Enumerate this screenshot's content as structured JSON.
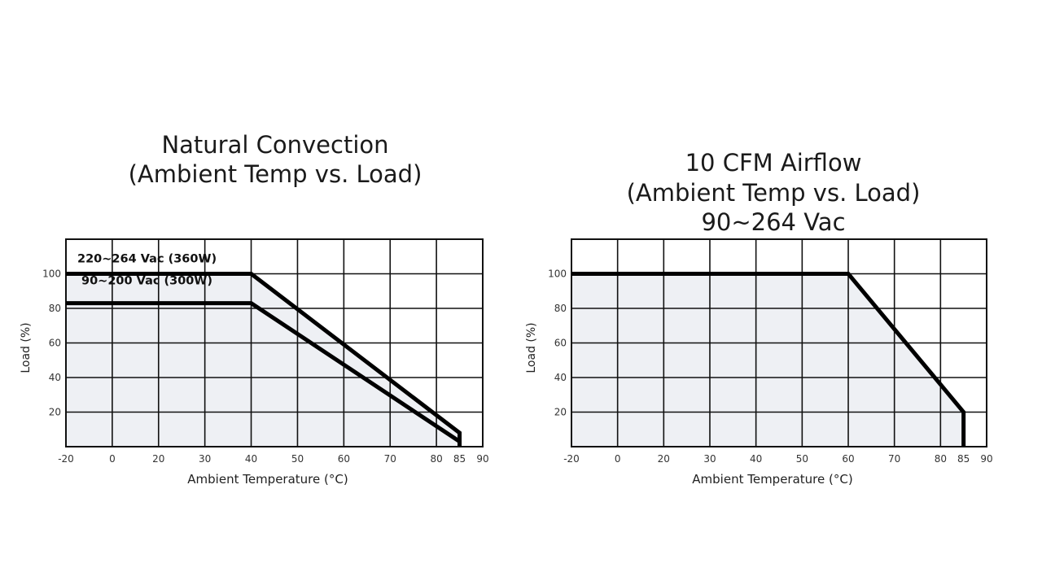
{
  "chart_data": [
    {
      "type": "line",
      "title": "Natural Convection",
      "subtitle": "(Ambient Temp vs. Load)",
      "subtitle2": "",
      "xlabel": "Ambient Temperature (°C)",
      "ylabel": "Load (%)",
      "xlim": [
        -20,
        90
      ],
      "ylim": [
        0,
        120
      ],
      "grid": true,
      "x_ticks": [
        -20,
        0,
        20,
        30,
        40,
        50,
        60,
        70,
        80,
        85,
        90
      ],
      "x_tick_labels": [
        "-20",
        "0",
        "20",
        "30",
        "40",
        "50",
        "60",
        "70",
        "80",
        "85",
        "90"
      ],
      "y_ticks": [
        20,
        40,
        60,
        80,
        100
      ],
      "y_tick_labels": [
        "20",
        "40",
        "60",
        "80",
        "100"
      ],
      "series": [
        {
          "name": "220~264 Vac (360W)",
          "x": [
            -20,
            40,
            85,
            85
          ],
          "y": [
            100,
            100,
            8,
            0
          ]
        },
        {
          "name": "90~200 Vac (300W)",
          "x": [
            -20,
            40,
            85,
            85
          ],
          "y": [
            83,
            83,
            3,
            0
          ]
        }
      ]
    },
    {
      "type": "line",
      "title": "10 CFM Airflow",
      "subtitle": "(Ambient Temp vs. Load)",
      "subtitle2": "90~264 Vac",
      "xlabel": "Ambient Temperature (°C)",
      "ylabel": "Load (%)",
      "xlim": [
        -20,
        90
      ],
      "ylim": [
        0,
        120
      ],
      "grid": true,
      "x_ticks": [
        -20,
        0,
        20,
        30,
        40,
        50,
        60,
        70,
        80,
        85,
        90
      ],
      "x_tick_labels": [
        "-20",
        "0",
        "20",
        "30",
        "40",
        "50",
        "60",
        "70",
        "80",
        "85",
        "90"
      ],
      "y_ticks": [
        20,
        40,
        60,
        80,
        100
      ],
      "y_tick_labels": [
        "20",
        "40",
        "60",
        "80",
        "100"
      ],
      "series": [
        {
          "x": [
            -20,
            60,
            85,
            85
          ],
          "y": [
            100,
            100,
            20,
            0
          ]
        }
      ]
    }
  ]
}
